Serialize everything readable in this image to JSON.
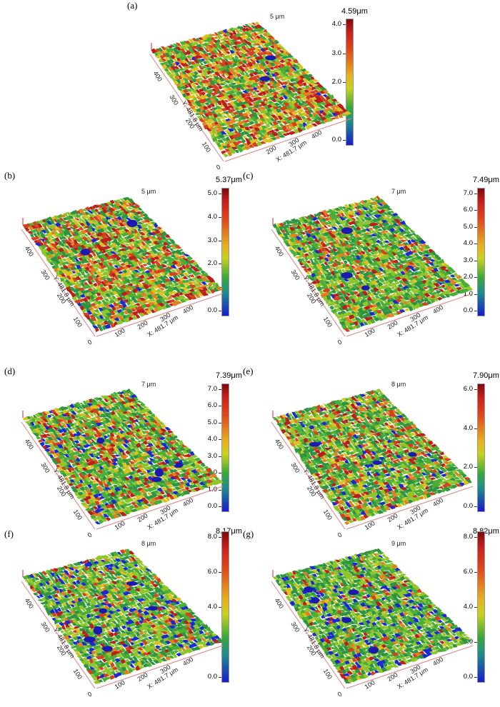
{
  "panels": [
    {
      "label": "(a)",
      "max": "4.59μm",
      "ztop": "5 μm",
      "ticks": [
        "4.0",
        "3.0",
        "2.0",
        "1.0",
        "0.0"
      ],
      "y_axis": "Y: 481.8 μm",
      "x_axis": "X: 481.7 μm",
      "y_ticks": [
        "400",
        "300",
        "200",
        "100"
      ],
      "x_ticks": [
        "200",
        "300",
        "400"
      ],
      "origin": "0",
      "scheme": "a"
    },
    {
      "label": "(b)",
      "max": "5.37μm",
      "ztop": "5 μm",
      "ticks": [
        "5.0",
        "4.0",
        "3.0",
        "2.0",
        "1.0",
        "0.0"
      ],
      "y_axis": "Y: 481.8 μm",
      "x_axis": "X: 481.7 μm",
      "y_ticks": [
        "400",
        "300",
        "200",
        "100"
      ],
      "x_ticks": [
        "100",
        "200",
        "300",
        "400"
      ],
      "origin": "0",
      "scheme": "b"
    },
    {
      "label": "(c)",
      "max": "7.49μm",
      "ztop": "7 μm",
      "ticks": [
        "7.0",
        "6.0",
        "5.0",
        "4.0",
        "3.0",
        "2.0",
        "1.0",
        "0.0"
      ],
      "y_axis": "Y: 481.8 μm",
      "x_axis": "X: 481.7 μm",
      "y_ticks": [
        "400",
        "300",
        "200",
        "100"
      ],
      "x_ticks": [
        "100",
        "200",
        "300",
        "400"
      ],
      "origin": "0",
      "scheme": "c"
    },
    {
      "label": "(d)",
      "max": "7.39μm",
      "ztop": "7 μm",
      "ticks": [
        "7.0",
        "6.0",
        "5.0",
        "4.0",
        "3.0",
        "2.0",
        "1.0",
        "0.0"
      ],
      "y_axis": "Y: 481.8 μm",
      "x_axis": "X: 481.7 μm",
      "y_ticks": [
        "400",
        "300",
        "200",
        "100"
      ],
      "x_ticks": [
        "100",
        "200",
        "300",
        "400"
      ],
      "origin": "0",
      "scheme": "d"
    },
    {
      "label": "(e)",
      "max": "7.90μm",
      "ztop": "8 μm",
      "ticks": [
        "6.0",
        "4.0",
        "2.0",
        "0.0"
      ],
      "y_axis": "Y: 481.8 μm",
      "x_axis": "X: 481.7 μm",
      "y_ticks": [
        "400",
        "300",
        "200",
        "100"
      ],
      "x_ticks": [
        "100",
        "200",
        "300",
        "400"
      ],
      "origin": "0",
      "scheme": "e"
    },
    {
      "label": "(f)",
      "max": "8.17μm",
      "ztop": "8 μm",
      "ticks": [
        "8.0",
        "6.0",
        "4.0",
        "2.0",
        "0.0"
      ],
      "y_axis": "Y: 481.8 μm",
      "x_axis": "X: 481.7 μm",
      "y_ticks": [
        "400",
        "300",
        "200",
        "100"
      ],
      "x_ticks": [
        "100",
        "200",
        "300",
        "400"
      ],
      "origin": "0",
      "scheme": "f"
    },
    {
      "label": "(g)",
      "max": "8.82μm",
      "ztop": "9 μm",
      "ticks": [
        "8.0",
        "6.0",
        "4.0",
        "2.0",
        "0.0"
      ],
      "y_axis": "Y: 481.8 μm",
      "x_axis": "X: 481.7 μm",
      "y_ticks": [
        "400",
        "300",
        "200",
        "100"
      ],
      "x_ticks": [
        "100",
        "200",
        "300",
        "400"
      ],
      "origin": "0",
      "scheme": "g"
    }
  ],
  "colors": {
    "high": "#c8281c",
    "midhigh": "#e07a1e",
    "mid": "#d6c81e",
    "midlow": "#5cb832",
    "low": "#2e8c3a",
    "deep": "#1a1acc",
    "axis": "#e08080"
  }
}
